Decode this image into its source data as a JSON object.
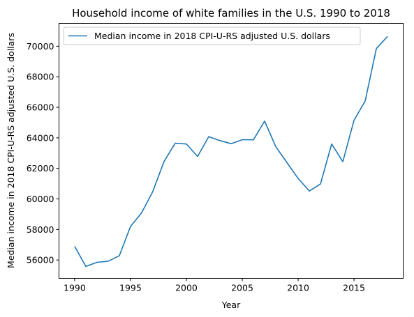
{
  "chart_data": {
    "type": "line",
    "title": "Household income of white families in the U.S. 1990 to 2018",
    "xlabel": "Year",
    "ylabel": "Median income in 2018 CPI-U-RS adjusted U.S. dollars",
    "xlim": [
      1988.6,
      2019.4
    ],
    "ylim": [
      54800,
      71500
    ],
    "xticks": [
      1990,
      1995,
      2000,
      2005,
      2010,
      2015
    ],
    "yticks": [
      56000,
      58000,
      60000,
      62000,
      64000,
      66000,
      68000,
      70000
    ],
    "grid": false,
    "legend_position": "top-left",
    "series": [
      {
        "name": "Median income in 2018 CPI-U-RS adjusted U.S. dollars",
        "color": "#1f77b4",
        "x": [
          1990,
          1991,
          1992,
          1993,
          1994,
          1995,
          1996,
          1997,
          1998,
          1999,
          2000,
          2001,
          2002,
          2003,
          2004,
          2005,
          2006,
          2007,
          2008,
          2009,
          2010,
          2011,
          2012,
          2013,
          2014,
          2015,
          2016,
          2017,
          2018
        ],
        "y": [
          56900,
          55580,
          55850,
          55920,
          56280,
          58200,
          59100,
          60500,
          62450,
          63650,
          63600,
          62780,
          64080,
          63820,
          63620,
          63880,
          63870,
          65100,
          63420,
          62380,
          61340,
          60520,
          60980,
          63600,
          62440,
          65150,
          66420,
          69850,
          70640
        ]
      }
    ]
  }
}
